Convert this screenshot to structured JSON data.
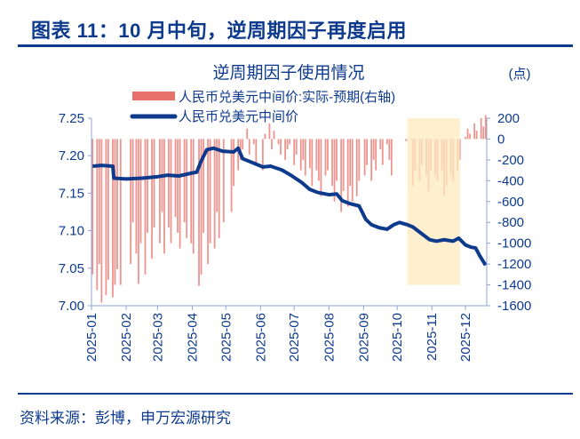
{
  "figure": {
    "title": "图表 11：10 月中旬，逆周期因子再度启用",
    "source": "资料来源：彭博，申万宏源研究"
  },
  "chart_data": {
    "type": "bar+line",
    "title": "逆周期因子使用情况",
    "right_unit": "(点)",
    "x_ticks": [
      "2025-01",
      "2025-02",
      "2025-03",
      "2025-04",
      "2025-05",
      "2025-06",
      "2025-07",
      "2025-08",
      "2025-09",
      "2025-10",
      "2025-11",
      "2025-12"
    ],
    "left_axis": {
      "range": [
        7.0,
        7.25
      ],
      "ticks": [
        "7.00",
        "7.05",
        "7.10",
        "7.15",
        "7.20",
        "7.25"
      ]
    },
    "right_axis": {
      "range": [
        -1600,
        200
      ],
      "ticks": [
        "-1600",
        "-1400",
        "-1200",
        "-1000",
        "-800",
        "-600",
        "-400",
        "-200",
        "0",
        "200"
      ]
    },
    "grid": false,
    "legend_position": "top",
    "highlight": {
      "from": "2025-10-10",
      "to": "2025-11-26",
      "color": "#fde9bf"
    },
    "series": [
      {
        "name": "人民币兑美元中间价:实际-预期(右轴)",
        "type": "bar",
        "axis": "right",
        "color": "#e8706a",
        "points": [
          [
            "2025-01-02",
            -1300
          ],
          [
            "2025-01-06",
            -1450
          ],
          [
            "2025-01-08",
            -1200
          ],
          [
            "2025-01-10",
            -1570
          ],
          [
            "2025-01-14",
            -1500
          ],
          [
            "2025-01-16",
            -1350
          ],
          [
            "2025-01-20",
            -1520
          ],
          [
            "2025-01-22",
            -1400
          ],
          [
            "2025-01-24",
            -1250
          ],
          [
            "2025-01-27",
            -1400
          ],
          [
            "2025-02-05",
            -1200
          ],
          [
            "2025-02-07",
            -800
          ],
          [
            "2025-02-10",
            -1100
          ],
          [
            "2025-02-12",
            -1390
          ],
          [
            "2025-02-14",
            -1000
          ],
          [
            "2025-02-18",
            -1300
          ],
          [
            "2025-02-20",
            -900
          ],
          [
            "2025-02-24",
            -1150
          ],
          [
            "2025-02-26",
            -850
          ],
          [
            "2025-03-03",
            -1000
          ],
          [
            "2025-03-05",
            -700
          ],
          [
            "2025-03-07",
            -1100
          ],
          [
            "2025-03-11",
            -850
          ],
          [
            "2025-03-13",
            -1000
          ],
          [
            "2025-03-17",
            -750
          ],
          [
            "2025-03-19",
            -900
          ],
          [
            "2025-03-21",
            -1050
          ],
          [
            "2025-03-25",
            -800
          ],
          [
            "2025-03-27",
            -950
          ],
          [
            "2025-03-31",
            -1000
          ],
          [
            "2025-04-02",
            -1100
          ],
          [
            "2025-04-07",
            -1410
          ],
          [
            "2025-04-09",
            -1300
          ],
          [
            "2025-04-11",
            -900
          ],
          [
            "2025-04-15",
            -1200
          ],
          [
            "2025-04-17",
            -1000
          ],
          [
            "2025-04-21",
            -1050
          ],
          [
            "2025-04-23",
            -700
          ],
          [
            "2025-04-25",
            -950
          ],
          [
            "2025-04-29",
            -800
          ],
          [
            "2025-05-06",
            -700
          ],
          [
            "2025-05-08",
            -450
          ],
          [
            "2025-05-12",
            -300
          ],
          [
            "2025-05-14",
            -200
          ],
          [
            "2025-05-16",
            -100
          ],
          [
            "2025-05-20",
            100
          ],
          [
            "2025-05-22",
            -150
          ],
          [
            "2025-05-26",
            -50
          ],
          [
            "2025-05-28",
            -250
          ],
          [
            "2025-06-03",
            -300
          ],
          [
            "2025-06-05",
            50
          ],
          [
            "2025-06-09",
            150
          ],
          [
            "2025-06-11",
            -100
          ],
          [
            "2025-06-13",
            80
          ],
          [
            "2025-06-17",
            -50
          ],
          [
            "2025-06-19",
            -150
          ],
          [
            "2025-06-23",
            -200
          ],
          [
            "2025-06-25",
            -100
          ],
          [
            "2025-06-27",
            -50
          ],
          [
            "2025-07-01",
            -250
          ],
          [
            "2025-07-03",
            -150
          ],
          [
            "2025-07-07",
            -300
          ],
          [
            "2025-07-09",
            -200
          ],
          [
            "2025-07-11",
            -350
          ],
          [
            "2025-07-15",
            -280
          ],
          [
            "2025-07-17",
            -450
          ],
          [
            "2025-07-21",
            -300
          ],
          [
            "2025-07-23",
            -400
          ],
          [
            "2025-07-25",
            -550
          ],
          [
            "2025-07-29",
            -350
          ],
          [
            "2025-07-31",
            -300
          ],
          [
            "2025-08-04",
            -450
          ],
          [
            "2025-08-06",
            -600
          ],
          [
            "2025-08-08",
            -400
          ],
          [
            "2025-08-12",
            -700
          ],
          [
            "2025-08-14",
            -500
          ],
          [
            "2025-08-18",
            -650
          ],
          [
            "2025-08-20",
            -450
          ],
          [
            "2025-08-22",
            -600
          ],
          [
            "2025-08-26",
            -550
          ],
          [
            "2025-08-28",
            -400
          ],
          [
            "2025-09-02",
            -350
          ],
          [
            "2025-09-04",
            -250
          ],
          [
            "2025-09-08",
            -400
          ],
          [
            "2025-09-10",
            -200
          ],
          [
            "2025-09-12",
            -300
          ],
          [
            "2025-09-16",
            -100
          ],
          [
            "2025-09-18",
            -250
          ],
          [
            "2025-09-22",
            -50
          ],
          [
            "2025-09-24",
            -200
          ],
          [
            "2025-09-26",
            -350
          ],
          [
            "2025-10-09",
            -20
          ],
          [
            "2025-10-13",
            -10
          ],
          [
            "2025-10-15",
            -450
          ],
          [
            "2025-10-17",
            -300
          ],
          [
            "2025-10-21",
            -400
          ],
          [
            "2025-10-23",
            -250
          ],
          [
            "2025-10-27",
            -350
          ],
          [
            "2025-10-29",
            -500
          ],
          [
            "2025-10-31",
            -300
          ],
          [
            "2025-11-04",
            -350
          ],
          [
            "2025-11-06",
            -400
          ],
          [
            "2025-11-10",
            -300
          ],
          [
            "2025-11-12",
            -550
          ],
          [
            "2025-11-14",
            -450
          ],
          [
            "2025-11-18",
            -350
          ],
          [
            "2025-11-20",
            -400
          ],
          [
            "2025-11-24",
            -300
          ],
          [
            "2025-11-26",
            -200
          ],
          [
            "2025-12-01",
            20
          ],
          [
            "2025-12-03",
            100
          ],
          [
            "2025-12-05",
            50
          ],
          [
            "2025-12-09",
            150
          ],
          [
            "2025-12-11",
            80
          ],
          [
            "2025-12-15",
            200
          ],
          [
            "2025-12-17",
            120
          ],
          [
            "2025-12-19",
            230
          ]
        ]
      },
      {
        "name": "人民币兑美元中间价",
        "type": "line",
        "axis": "left",
        "color": "#0d3a8c",
        "points": [
          [
            "2025-01-02",
            7.186
          ],
          [
            "2025-01-10",
            7.187
          ],
          [
            "2025-01-20",
            7.186
          ],
          [
            "2025-01-21",
            7.17
          ],
          [
            "2025-02-01",
            7.169
          ],
          [
            "2025-02-15",
            7.17
          ],
          [
            "2025-03-01",
            7.172
          ],
          [
            "2025-03-10",
            7.174
          ],
          [
            "2025-03-20",
            7.173
          ],
          [
            "2025-04-01",
            7.177
          ],
          [
            "2025-04-05",
            7.178
          ],
          [
            "2025-04-09",
            7.193
          ],
          [
            "2025-04-14",
            7.208
          ],
          [
            "2025-04-20",
            7.21
          ],
          [
            "2025-04-28",
            7.206
          ],
          [
            "2025-05-08",
            7.205
          ],
          [
            "2025-05-12",
            7.21
          ],
          [
            "2025-05-16",
            7.196
          ],
          [
            "2025-05-26",
            7.19
          ],
          [
            "2025-06-03",
            7.185
          ],
          [
            "2025-06-10",
            7.186
          ],
          [
            "2025-06-20",
            7.181
          ],
          [
            "2025-06-28",
            7.174
          ],
          [
            "2025-07-08",
            7.164
          ],
          [
            "2025-07-15",
            7.155
          ],
          [
            "2025-07-22",
            7.151
          ],
          [
            "2025-08-01",
            7.148
          ],
          [
            "2025-08-08",
            7.149
          ],
          [
            "2025-08-13",
            7.14
          ],
          [
            "2025-08-20",
            7.136
          ],
          [
            "2025-08-28",
            7.133
          ],
          [
            "2025-09-03",
            7.115
          ],
          [
            "2025-09-08",
            7.108
          ],
          [
            "2025-09-15",
            7.104
          ],
          [
            "2025-09-22",
            7.102
          ],
          [
            "2025-09-28",
            7.108
          ],
          [
            "2025-10-03",
            7.111
          ],
          [
            "2025-10-10",
            7.108
          ],
          [
            "2025-10-15",
            7.105
          ],
          [
            "2025-10-22",
            7.097
          ],
          [
            "2025-10-30",
            7.088
          ],
          [
            "2025-11-05",
            7.086
          ],
          [
            "2025-11-12",
            7.088
          ],
          [
            "2025-11-20",
            7.086
          ],
          [
            "2025-11-25",
            7.09
          ],
          [
            "2025-12-01",
            7.081
          ],
          [
            "2025-12-06",
            7.078
          ],
          [
            "2025-12-10",
            7.077
          ],
          [
            "2025-12-14",
            7.066
          ],
          [
            "2025-12-19",
            7.054
          ]
        ]
      }
    ]
  }
}
